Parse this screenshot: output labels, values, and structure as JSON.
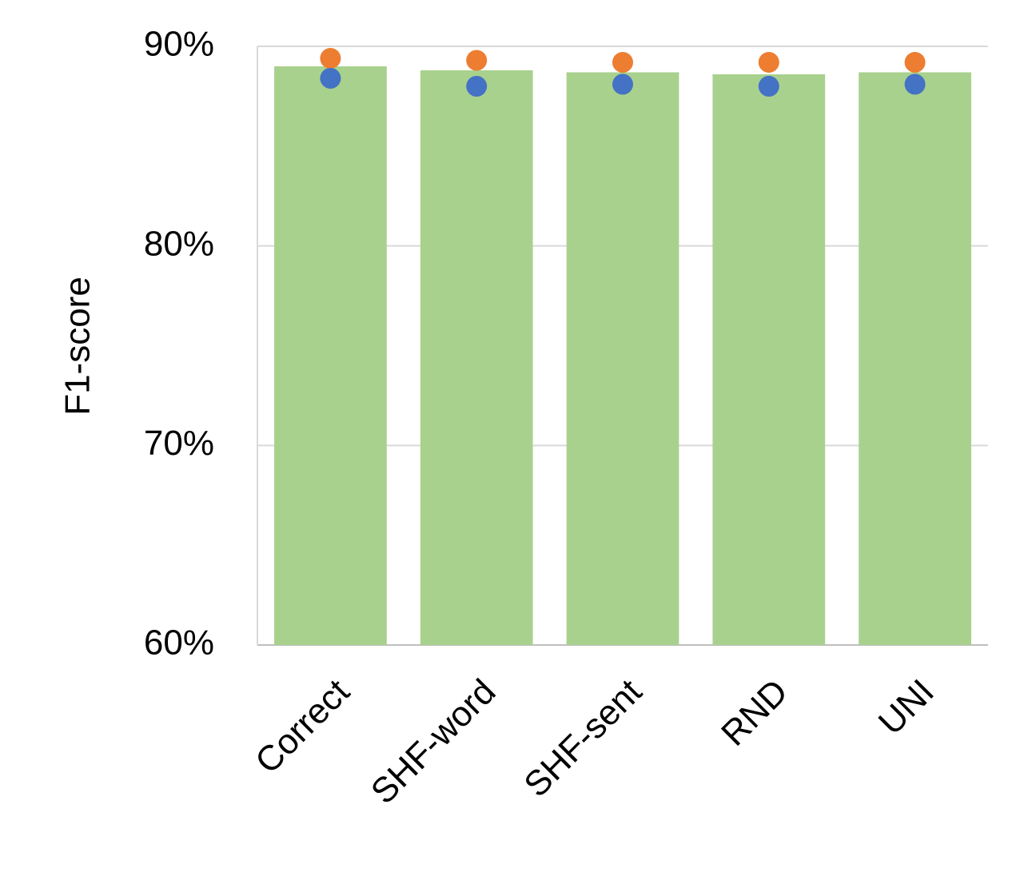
{
  "chart_data": {
    "type": "bar",
    "ylabel": "F1-score",
    "categories": [
      "Correct",
      "SHF-word",
      "SHF-sent",
      "RND",
      "UNI"
    ],
    "values": [
      89.0,
      88.8,
      88.7,
      88.6,
      88.7
    ],
    "color": "#a9d18e",
    "series": [
      {
        "color": "#ed7d31",
        "values": [
          89.4,
          89.3,
          89.2,
          89.2,
          89.2
        ]
      },
      {
        "color": "#4472c4",
        "values": [
          88.4,
          88.0,
          88.1,
          88.0,
          88.1
        ]
      }
    ],
    "ylim": [
      60,
      90
    ],
    "yticks": [
      {
        "value": 60,
        "label": "60%"
      },
      {
        "value": 70,
        "label": "70%"
      },
      {
        "value": 80,
        "label": "80%"
      },
      {
        "value": 90,
        "label": "90%"
      }
    ],
    "grid": true
  }
}
